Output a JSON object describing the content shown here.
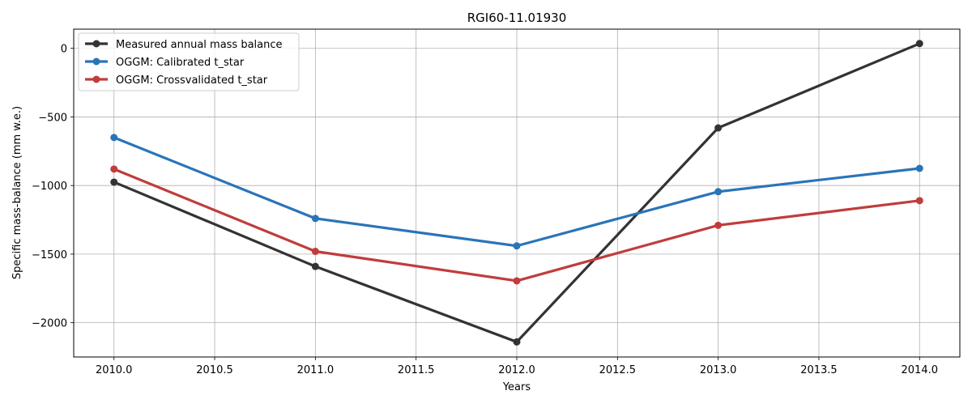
{
  "chart_data": {
    "type": "line",
    "title": "RGI60-11.01930",
    "xlabel": "Years",
    "ylabel": "Specific mass-balance (mm w.e.)",
    "xlim": [
      2009.8,
      2014.2
    ],
    "ylim": [
      -2250,
      140
    ],
    "xticks": [
      2010.0,
      2010.5,
      2011.0,
      2011.5,
      2012.0,
      2012.5,
      2013.0,
      2013.5,
      2014.0
    ],
    "xtick_labels": [
      "2010.0",
      "2010.5",
      "2011.0",
      "2011.5",
      "2012.0",
      "2012.5",
      "2013.0",
      "2013.5",
      "2014.0"
    ],
    "yticks": [
      0,
      -500,
      -1000,
      -1500,
      -2000
    ],
    "ytick_labels": [
      "0",
      "−500",
      "−1000",
      "−1500",
      "−2000"
    ],
    "grid": true,
    "legend_position": "top-left",
    "x": [
      2010,
      2011,
      2012,
      2013,
      2014
    ],
    "series": [
      {
        "name": "Measured annual mass balance",
        "color": "#333333",
        "values": [
          -975,
          -1590,
          -2140,
          -580,
          35
        ]
      },
      {
        "name": "OGGM: Calibrated t_star",
        "color": "#2a74b8",
        "values": [
          -650,
          -1240,
          -1440,
          -1045,
          -875
        ]
      },
      {
        "name": "OGGM: Crossvalidated t_star",
        "color": "#c03d3c",
        "values": [
          -880,
          -1480,
          -1695,
          -1290,
          -1110
        ]
      }
    ]
  }
}
